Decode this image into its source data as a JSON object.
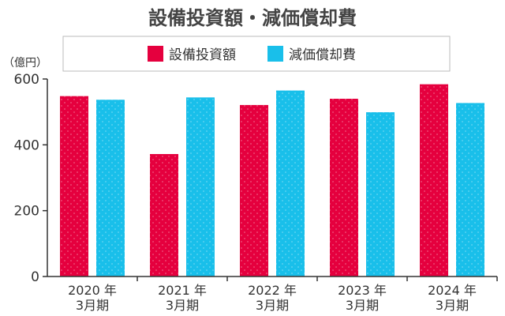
{
  "chart_data": {
    "type": "bar",
    "title": "設備投資額・減価償却費",
    "unit_label": "（億円）",
    "categories": [
      [
        "2020 年",
        "3月期"
      ],
      [
        "2021 年",
        "3月期"
      ],
      [
        "2022 年",
        "3月期"
      ],
      [
        "2023 年",
        "3月期"
      ],
      [
        "2024 年",
        "3月期"
      ]
    ],
    "series": [
      {
        "name": "設備投資額",
        "color": "#e5003e",
        "values": [
          548,
          372,
          521,
          540,
          584
        ]
      },
      {
        "name": "減価償却費",
        "color": "#19bfea",
        "values": [
          537,
          544,
          565,
          499,
          527
        ]
      }
    ],
    "ylim": [
      0,
      600
    ],
    "yticks": [
      0,
      200,
      400,
      600
    ],
    "legend_position": "top",
    "grid": false
  }
}
